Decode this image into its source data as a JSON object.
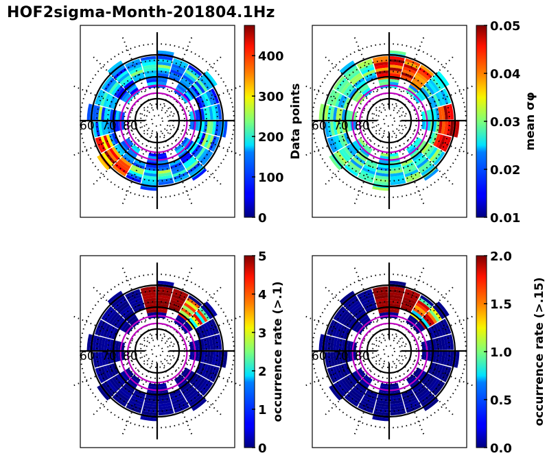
{
  "figure": {
    "title": "HOF2sigma-Month-201804.1Hz"
  },
  "chart_data": [
    {
      "type": "heatmap",
      "projection": "polar (magnetic latitude / MLT dial)",
      "title": "",
      "radial_labels": [
        "60",
        "70",
        "80"
      ],
      "radial_circles_deg": [
        60,
        70,
        80
      ],
      "colormap": "jet",
      "colorbar": {
        "label": "Data points",
        "range": [
          0,
          475
        ],
        "ticks": [
          0,
          100,
          200,
          300,
          400
        ],
        "tick_labels": [
          "0",
          "100",
          "200",
          "300",
          "400"
        ]
      },
      "overlay_contours": {
        "color": "#bf00bf",
        "count": 2
      },
      "dominant_values": {
        "outer_ring_60_70": "mostly 50-150, patches 200-300 near dawn/dusk",
        "maxima": "~450 near 60-65 deg on the pre-midnight side"
      }
    },
    {
      "type": "heatmap",
      "projection": "polar (magnetic latitude / MLT dial)",
      "title": "",
      "radial_labels": [
        "60",
        "70",
        "80"
      ],
      "radial_circles_deg": [
        60,
        70,
        80
      ],
      "colormap": "jet",
      "colorbar": {
        "label": "mean σφ",
        "range": [
          0.01,
          0.05
        ],
        "ticks": [
          0.01,
          0.02,
          0.03,
          0.04,
          0.05
        ],
        "tick_labels": [
          "0.01",
          "0.02",
          "0.03",
          "0.04",
          "0.05"
        ]
      },
      "overlay_contours": {
        "color": "#bf00bf",
        "count": 2
      },
      "dominant_values": {
        "general": "0.02-0.03",
        "maxima": "0.045-0.05 near 65-70 deg on the dawn side"
      }
    },
    {
      "type": "heatmap",
      "projection": "polar (magnetic latitude / MLT dial)",
      "title": "",
      "radial_labels": [
        "60",
        "70",
        "80"
      ],
      "radial_circles_deg": [
        60,
        70,
        80
      ],
      "colormap": "jet",
      "colorbar": {
        "label": "occurrence rate (>.1)",
        "range": [
          0,
          5
        ],
        "ticks": [
          0,
          1,
          2,
          3,
          4,
          5
        ],
        "tick_labels": [
          "0",
          "1",
          "2",
          "3",
          "4",
          "5"
        ]
      },
      "overlay_contours": {
        "color": "#bf00bf",
        "count": 2
      },
      "dominant_values": {
        "general": "~0",
        "maxima": "5 (saturated) near 62-70 deg on the dawn side"
      }
    },
    {
      "type": "heatmap",
      "projection": "polar (magnetic latitude / MLT dial)",
      "title": "",
      "radial_labels": [
        "60",
        "70",
        "80"
      ],
      "radial_circles_deg": [
        60,
        70,
        80
      ],
      "colormap": "jet",
      "colorbar": {
        "label": "occurrence rate (>.15)",
        "range": [
          0.0,
          2.0
        ],
        "ticks": [
          0.0,
          0.5,
          1.0,
          1.5,
          2.0
        ],
        "tick_labels": [
          "0.0",
          "0.5",
          "1.0",
          "1.5",
          "2.0"
        ]
      },
      "overlay_contours": {
        "color": "#bf00bf",
        "count": 2
      },
      "dominant_values": {
        "general": "~0",
        "maxima": "2.0 (saturated) near 62-70 deg on the dawn side"
      }
    }
  ]
}
